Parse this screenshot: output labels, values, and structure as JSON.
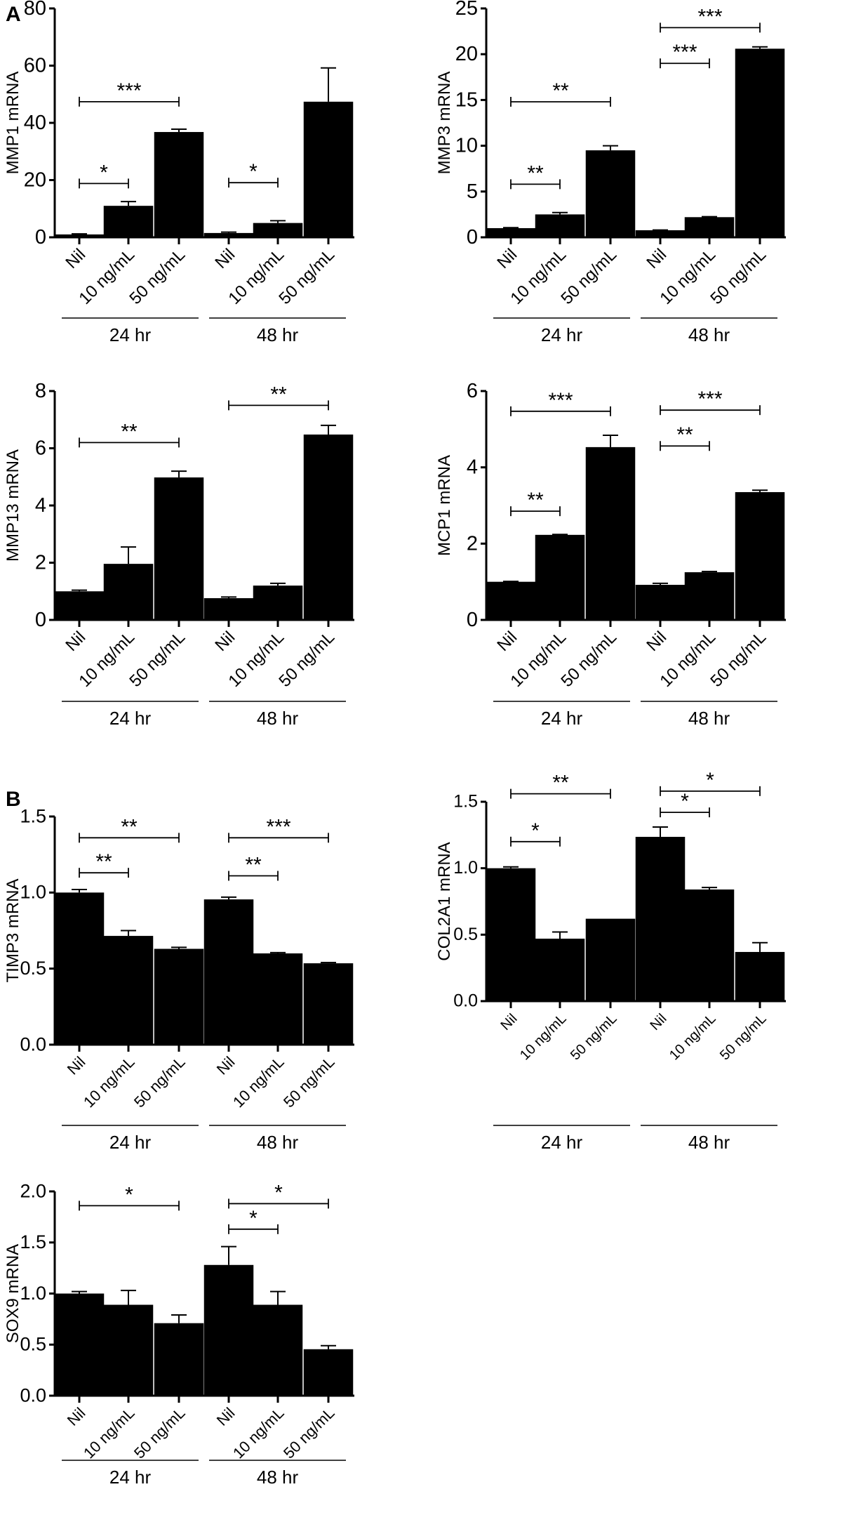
{
  "panel_labels": [
    "A",
    "B"
  ],
  "categories": [
    "Nil",
    "10 ng/mL",
    "50 ng/mL",
    "Nil",
    "10 ng/mL",
    "50 ng/mL"
  ],
  "groups": [
    "24 hr",
    "48 hr"
  ],
  "colors": {
    "bars": "#000000",
    "background": "#ffffff"
  },
  "chart_data": [
    {
      "type": "bar",
      "panel": "A",
      "ylabel": "MMP1 mRNA",
      "ylim": [
        0,
        80
      ],
      "yticks": [
        0,
        20,
        40,
        60,
        80
      ],
      "values": [
        1.0,
        11.0,
        36.8,
        1.5,
        5.0,
        47.4
      ],
      "error_upper": [
        1.2,
        12.5,
        37.8,
        1.8,
        5.8,
        59.2
      ],
      "significance": [
        {
          "from": 0,
          "to": 1,
          "y": 18.8,
          "label": "*"
        },
        {
          "from": 0,
          "to": 2,
          "y": 47.4,
          "label": "***"
        },
        {
          "from": 3,
          "to": 4,
          "y": 19.1,
          "label": "*"
        }
      ]
    },
    {
      "type": "bar",
      "panel": "A",
      "ylabel": "MMP3 mRNA",
      "ylim": [
        0,
        25
      ],
      "yticks": [
        0,
        5,
        10,
        15,
        20,
        25
      ],
      "values": [
        1.0,
        2.5,
        9.5,
        0.77,
        2.2,
        20.6
      ],
      "error_upper": [
        1.05,
        2.7,
        10.0,
        0.8,
        2.25,
        20.8
      ],
      "significance": [
        {
          "from": 0,
          "to": 1,
          "y": 5.8,
          "label": "**"
        },
        {
          "from": 0,
          "to": 2,
          "y": 14.8,
          "label": "**"
        },
        {
          "from": 3,
          "to": 4,
          "y": 19.0,
          "label": "***"
        },
        {
          "from": 3,
          "to": 5,
          "y": 22.9,
          "label": "***"
        }
      ]
    },
    {
      "type": "bar",
      "panel": "A",
      "ylabel": "MMP13 mRNA",
      "ylim": [
        0,
        8
      ],
      "yticks": [
        0,
        2,
        4,
        6,
        8
      ],
      "values": [
        1.0,
        1.96,
        4.98,
        0.76,
        1.2,
        6.48
      ],
      "error_upper": [
        1.04,
        2.55,
        5.2,
        0.8,
        1.28,
        6.8
      ],
      "significance": [
        {
          "from": 0,
          "to": 2,
          "y": 6.2,
          "label": "**"
        },
        {
          "from": 3,
          "to": 5,
          "y": 7.5,
          "label": "**"
        }
      ]
    },
    {
      "type": "bar",
      "panel": "A",
      "ylabel": "MCP1 mRNA",
      "ylim": [
        0,
        6
      ],
      "yticks": [
        0,
        2,
        4,
        6
      ],
      "values": [
        1.0,
        2.23,
        4.53,
        0.92,
        1.25,
        3.35
      ],
      "error_upper": [
        1.01,
        2.24,
        4.84,
        0.96,
        1.27,
        3.4
      ],
      "significance": [
        {
          "from": 0,
          "to": 1,
          "y": 2.85,
          "label": "**"
        },
        {
          "from": 0,
          "to": 2,
          "y": 5.47,
          "label": "***"
        },
        {
          "from": 3,
          "to": 4,
          "y": 4.56,
          "label": "**"
        },
        {
          "from": 3,
          "to": 5,
          "y": 5.5,
          "label": "***"
        }
      ]
    },
    {
      "type": "bar",
      "panel": "B",
      "ylabel": "TIMP3 mRNA",
      "ylim": [
        0,
        1.5
      ],
      "yticks": [
        "0.0",
        "0.5",
        "1.0",
        "1.5"
      ],
      "values": [
        1.0,
        0.715,
        0.63,
        0.955,
        0.6,
        0.535
      ],
      "error_upper": [
        1.02,
        0.75,
        0.64,
        0.97,
        0.605,
        0.54
      ],
      "significance": [
        {
          "from": 0,
          "to": 1,
          "y": 1.13,
          "label": "**"
        },
        {
          "from": 0,
          "to": 2,
          "y": 1.36,
          "label": "**"
        },
        {
          "from": 3,
          "to": 4,
          "y": 1.11,
          "label": "**"
        },
        {
          "from": 3,
          "to": 5,
          "y": 1.36,
          "label": "***"
        }
      ]
    },
    {
      "type": "bar",
      "panel": "B",
      "ylabel": "COL2A1 mRNA",
      "ylim": [
        0,
        1.5
      ],
      "yticks": [
        "0.0",
        "0.5",
        "1.0",
        "1.5"
      ],
      "values": [
        1.0,
        0.47,
        0.62,
        1.236,
        0.84,
        0.37
      ],
      "error_upper": [
        1.01,
        0.52,
        0.62,
        1.31,
        0.855,
        0.44
      ],
      "significance": [
        {
          "from": 0,
          "to": 1,
          "y": 1.2,
          "label": "*"
        },
        {
          "from": 0,
          "to": 2,
          "y": 1.56,
          "label": "**"
        },
        {
          "from": 3,
          "to": 4,
          "y": 1.42,
          "label": "*"
        },
        {
          "from": 3,
          "to": 5,
          "y": 1.58,
          "label": "*"
        }
      ]
    },
    {
      "type": "bar",
      "panel": "B",
      "ylabel": "SOX9 mRNA",
      "ylim": [
        0,
        2.0
      ],
      "yticks": [
        "0.0",
        "0.5",
        "1.0",
        "1.5",
        "2.0"
      ],
      "values": [
        1.0,
        0.89,
        0.71,
        1.28,
        0.89,
        0.455
      ],
      "error_upper": [
        1.02,
        1.03,
        0.79,
        1.46,
        1.02,
        0.49
      ],
      "significance": [
        {
          "from": 0,
          "to": 2,
          "y": 1.86,
          "label": "*"
        },
        {
          "from": 3,
          "to": 4,
          "y": 1.63,
          "label": "*"
        },
        {
          "from": 3,
          "to": 5,
          "y": 1.88,
          "label": "*"
        }
      ]
    }
  ]
}
